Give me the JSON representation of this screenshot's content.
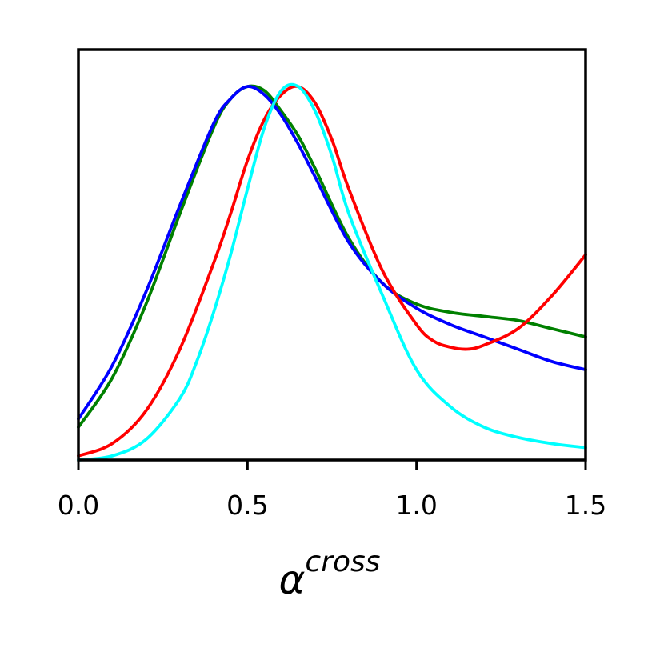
{
  "chart_data": {
    "type": "line",
    "xlabel": "α",
    "xlabel_superscript": "cross",
    "ylabel": "",
    "xlim": [
      0.0,
      1.5
    ],
    "ylim": [
      0,
      1.0
    ],
    "xticks": [
      0.0,
      0.5,
      1.0,
      1.5
    ],
    "xtick_labels": [
      "0.0",
      "0.5",
      "1.0",
      "1.5"
    ],
    "yticks": [],
    "grid": false,
    "legend": "none",
    "series": [
      {
        "color": "#008000",
        "x": [
          0.0,
          0.1,
          0.2,
          0.3,
          0.4,
          0.45,
          0.5,
          0.55,
          0.6,
          0.65,
          0.7,
          0.8,
          0.9,
          1.0,
          1.1,
          1.2,
          1.3,
          1.4,
          1.5
        ],
        "y": [
          0.08,
          0.2,
          0.38,
          0.6,
          0.81,
          0.88,
          0.91,
          0.9,
          0.85,
          0.79,
          0.71,
          0.54,
          0.43,
          0.38,
          0.36,
          0.35,
          0.34,
          0.32,
          0.3
        ]
      },
      {
        "color": "#0000ff",
        "x": [
          0.0,
          0.1,
          0.2,
          0.3,
          0.4,
          0.45,
          0.5,
          0.55,
          0.6,
          0.65,
          0.7,
          0.8,
          0.9,
          1.0,
          1.1,
          1.2,
          1.3,
          1.4,
          1.5
        ],
        "y": [
          0.1,
          0.23,
          0.41,
          0.62,
          0.82,
          0.88,
          0.91,
          0.89,
          0.84,
          0.77,
          0.69,
          0.53,
          0.43,
          0.37,
          0.33,
          0.3,
          0.27,
          0.24,
          0.22
        ]
      },
      {
        "color": "#ff0000",
        "x": [
          0.0,
          0.1,
          0.2,
          0.3,
          0.4,
          0.45,
          0.5,
          0.55,
          0.6,
          0.65,
          0.7,
          0.75,
          0.8,
          0.9,
          1.0,
          1.05,
          1.1,
          1.15,
          1.2,
          1.3,
          1.4,
          1.5
        ],
        "y": [
          0.01,
          0.04,
          0.12,
          0.27,
          0.48,
          0.6,
          0.73,
          0.83,
          0.89,
          0.91,
          0.87,
          0.78,
          0.66,
          0.46,
          0.33,
          0.29,
          0.275,
          0.27,
          0.28,
          0.32,
          0.4,
          0.5
        ]
      },
      {
        "color": "#00ffff",
        "x": [
          0.0,
          0.1,
          0.2,
          0.3,
          0.35,
          0.4,
          0.45,
          0.5,
          0.55,
          0.6,
          0.65,
          0.7,
          0.75,
          0.8,
          0.9,
          1.0,
          1.1,
          1.2,
          1.3,
          1.4,
          1.5
        ],
        "y": [
          0.0,
          0.01,
          0.05,
          0.15,
          0.24,
          0.36,
          0.5,
          0.66,
          0.81,
          0.9,
          0.91,
          0.85,
          0.74,
          0.6,
          0.4,
          0.22,
          0.13,
          0.08,
          0.055,
          0.04,
          0.03
        ]
      }
    ]
  }
}
